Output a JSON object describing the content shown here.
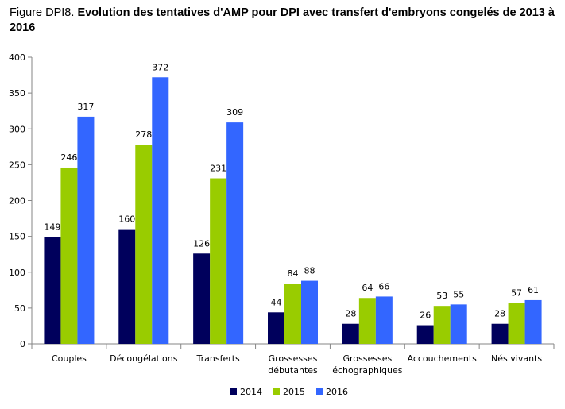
{
  "title": {
    "prefix": "Figure DPI8.",
    "text": "Evolution des tentatives d'AMP pour DPI avec transfert d'embryons congelés de 2013 à 2016"
  },
  "chart_data": {
    "type": "bar",
    "categories": [
      [
        "Couples"
      ],
      [
        "Décongélations"
      ],
      [
        "Transferts"
      ],
      [
        "Grossesses",
        "débutantes"
      ],
      [
        "Grossesses",
        "échographiques"
      ],
      [
        "Accouchements"
      ],
      [
        "Nés vivants"
      ]
    ],
    "series": [
      {
        "name": "2014",
        "color": "#00005c",
        "values": [
          149,
          160,
          126,
          44,
          28,
          26,
          28
        ]
      },
      {
        "name": "2015",
        "color": "#99cc00",
        "values": [
          246,
          278,
          231,
          84,
          64,
          53,
          57
        ]
      },
      {
        "name": "2016",
        "color": "#3366ff",
        "values": [
          317,
          372,
          309,
          88,
          66,
          55,
          61
        ]
      }
    ],
    "ylim": [
      0,
      400
    ],
    "yticks": [
      0,
      50,
      100,
      150,
      200,
      250,
      300,
      350,
      400
    ],
    "grid": false,
    "legend_position": "bottom",
    "data_labels": true
  }
}
